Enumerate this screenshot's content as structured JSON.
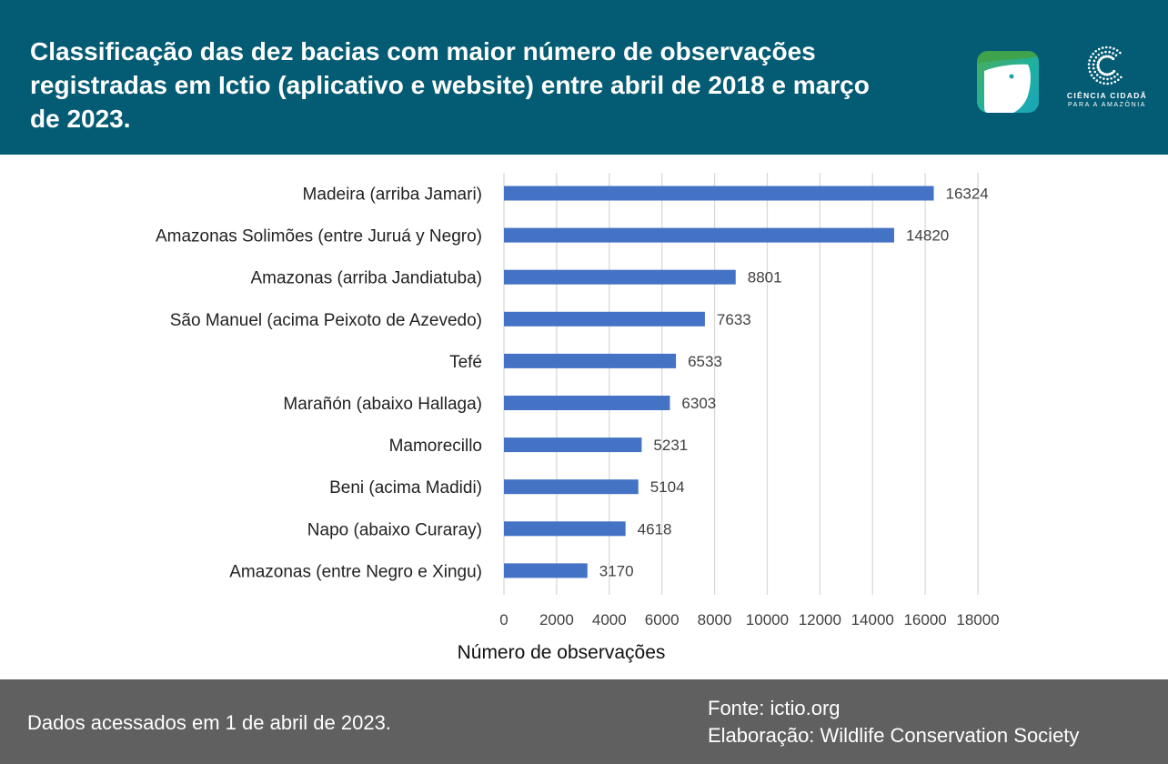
{
  "header": {
    "title": "Classificação das dez bacias com maior número de observações registradas em Ictio (aplicativo e website) entre abril de 2018 e março de 2023.",
    "logos": {
      "ictio_icon": "fish-app-icon",
      "cc_name": "CIÊNCIA CIDADÃ",
      "cc_sub": "PARA A AMAZÔNIA"
    }
  },
  "chart_data": {
    "type": "bar",
    "orientation": "horizontal",
    "categories": [
      "Madeira (arriba Jamari)",
      "Amazonas Solimões (entre Juruá y Negro)",
      "Amazonas (arriba Jandiatuba)",
      "São Manuel (acima Peixoto de Azevedo)",
      "Tefé",
      "Marañón (abaixo Hallaga)",
      "Mamorecillo",
      "Beni (acima Madidi)",
      "Napo (abaixo Curaray)",
      "Amazonas (entre Negro e Xingu)"
    ],
    "values": [
      16324,
      14820,
      8801,
      7633,
      6533,
      6303,
      5231,
      5104,
      4618,
      3170
    ],
    "xlabel": "Número de observações",
    "xlim": [
      0,
      18000
    ],
    "xticks": [
      0,
      2000,
      4000,
      6000,
      8000,
      10000,
      12000,
      14000,
      16000,
      18000
    ],
    "grid": "vertical",
    "data_labels": true,
    "bar_color": "#4472c4"
  },
  "footer": {
    "note": "Dados acessados em 1 de abril de 2023.",
    "source": "Fonte: ictio.org",
    "credit": "Elaboração: Wildlife Conservation Society"
  },
  "colors": {
    "header_bg": "#045b74",
    "footer_bg": "#606060",
    "grid": "#d9d9d9",
    "text": "#222222",
    "value_label": "#404040"
  }
}
